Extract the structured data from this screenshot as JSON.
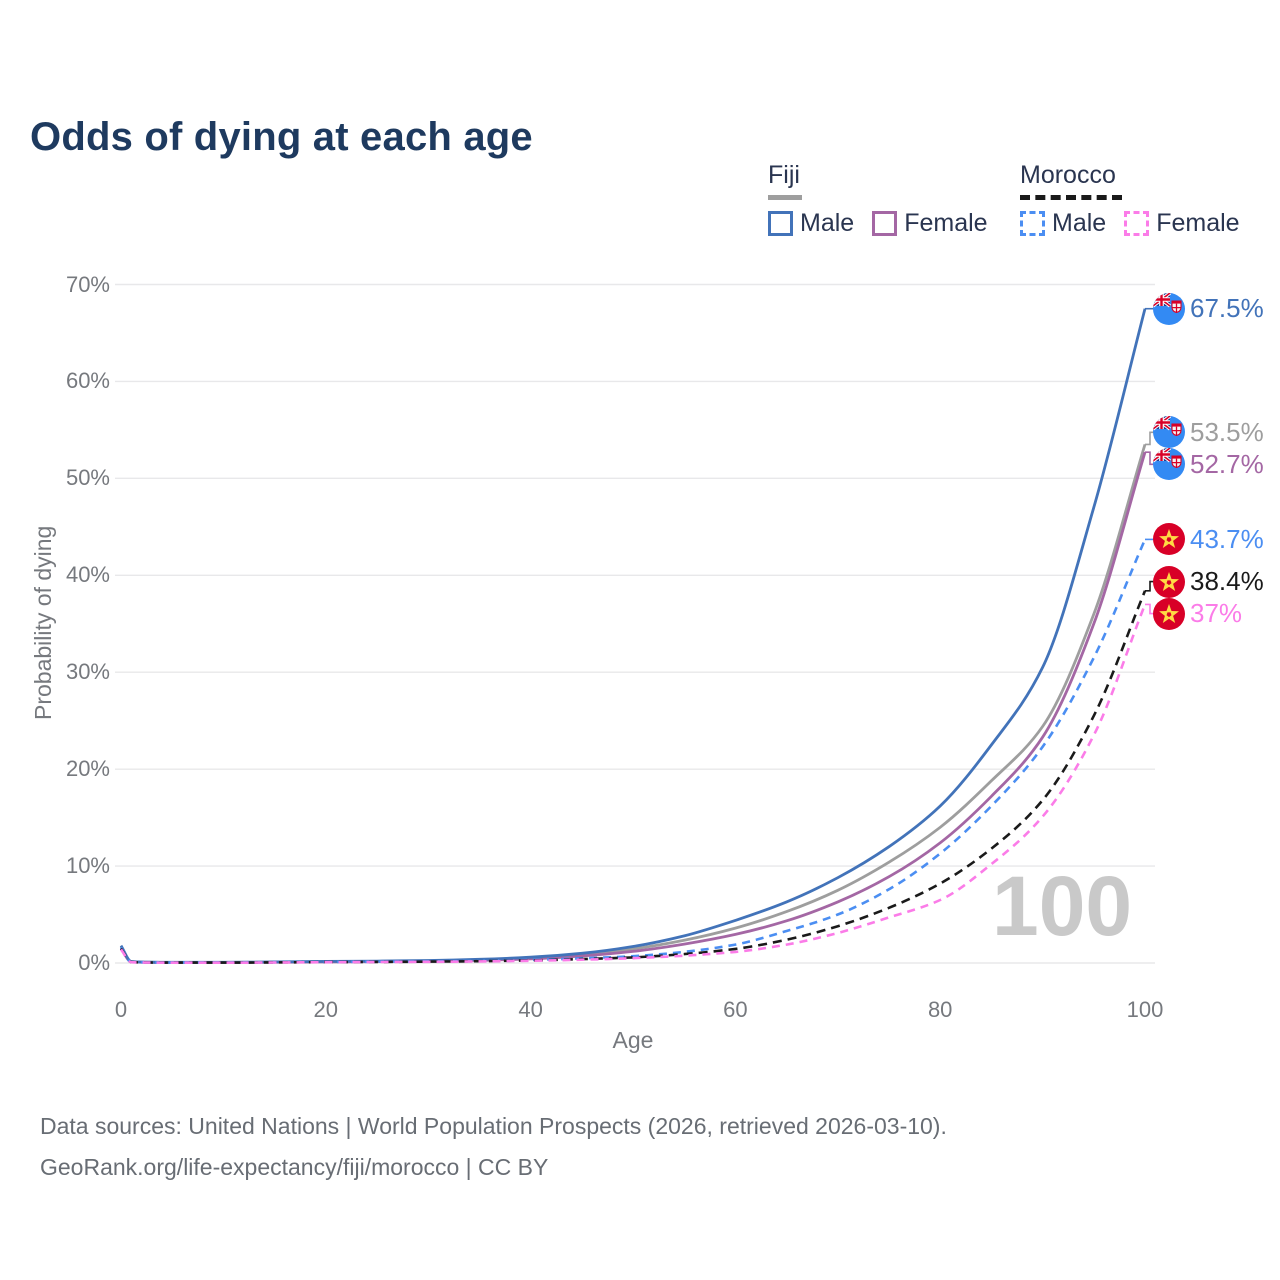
{
  "title": "Odds of dying at each age",
  "watermark": "100",
  "colors": {
    "fiji_male": "#4273b9",
    "fiji_female": "#a467a4",
    "fiji_all": "#9e9e9e",
    "morocco_male": "#4b8ef2",
    "morocco_female": "#fb7ce8",
    "morocco_all": "#1a1a1a",
    "grid": "#e8e8ea",
    "title_text": "#1e3a5f",
    "axis_text": "#76797e",
    "flag_fiji_field": "#338af3",
    "flag_morocco_field": "#d80027",
    "flag_morocco_star": "#ffda44"
  },
  "legend": {
    "groups": [
      {
        "name": "Fiji",
        "underline_color": "#9e9e9e",
        "underline_style": "solid",
        "items": [
          {
            "label": "Male",
            "color": "#4273b9",
            "style": "solid"
          },
          {
            "label": "Female",
            "color": "#a467a4",
            "style": "solid"
          }
        ]
      },
      {
        "name": "Morocco",
        "underline_color": "#1a1a1a",
        "underline_style": "dashed",
        "items": [
          {
            "label": "Male",
            "color": "#4b8ef2",
            "style": "dashed"
          },
          {
            "label": "Female",
            "color": "#fb7ce8",
            "style": "dashed"
          }
        ]
      }
    ]
  },
  "chart_data": {
    "type": "line",
    "title": "Odds of dying at each age",
    "xlabel": "Age",
    "ylabel": "Probability of dying",
    "xlim": [
      0,
      100
    ],
    "ylim": [
      0,
      70
    ],
    "x_ticks": [
      0,
      20,
      40,
      60,
      80,
      100
    ],
    "y_ticks": [
      "0%",
      "10%",
      "20%",
      "30%",
      "40%",
      "50%",
      "60%",
      "70%"
    ],
    "grid": true,
    "legend_position": "top-right",
    "x": [
      0,
      1,
      2,
      3,
      5,
      10,
      15,
      20,
      25,
      30,
      35,
      40,
      45,
      50,
      55,
      60,
      65,
      70,
      75,
      80,
      85,
      90,
      95,
      100
    ],
    "series": [
      {
        "name": "Fiji All",
        "country": "Fiji",
        "flag": "fiji",
        "color": "#9e9e9e",
        "dash": null,
        "end_label": "53.5%",
        "values": [
          1.65,
          0.13,
          0.09,
          0.07,
          0.06,
          0.06,
          0.09,
          0.13,
          0.17,
          0.22,
          0.32,
          0.5,
          0.85,
          1.45,
          2.35,
          3.6,
          5.3,
          7.5,
          10.4,
          14.0,
          18.8,
          24.4,
          36.0,
          53.5
        ]
      },
      {
        "name": "Fiji Female",
        "country": "Fiji",
        "flag": "fiji",
        "color": "#a467a4",
        "dash": null,
        "end_label": "52.7%",
        "values": [
          1.5,
          0.12,
          0.08,
          0.06,
          0.05,
          0.05,
          0.08,
          0.11,
          0.14,
          0.19,
          0.27,
          0.42,
          0.72,
          1.2,
          1.95,
          2.95,
          4.35,
          6.3,
          8.9,
          12.4,
          17.2,
          23.3,
          35.0,
          52.7
        ]
      },
      {
        "name": "Fiji Male",
        "country": "Fiji",
        "flag": "fiji",
        "color": "#4273b9",
        "dash": null,
        "end_label": "67.5%",
        "values": [
          1.8,
          0.15,
          0.1,
          0.08,
          0.07,
          0.07,
          0.11,
          0.16,
          0.2,
          0.26,
          0.38,
          0.6,
          1.0,
          1.7,
          2.8,
          4.4,
          6.3,
          8.8,
          12.0,
          16.2,
          22.5,
          30.5,
          47.0,
          67.5
        ]
      },
      {
        "name": "Morocco Male",
        "country": "Morocco",
        "flag": "morocco",
        "color": "#4b8ef2",
        "dash": "8 6",
        "end_label": "43.7%",
        "values": [
          1.6,
          0.1,
          0.07,
          0.05,
          0.04,
          0.04,
          0.07,
          0.1,
          0.13,
          0.16,
          0.22,
          0.32,
          0.48,
          0.7,
          1.15,
          1.9,
          3.3,
          5.0,
          7.6,
          11.3,
          16.2,
          22.3,
          31.5,
          43.7
        ]
      },
      {
        "name": "Morocco All",
        "country": "Morocco",
        "flag": "morocco",
        "color": "#1a1a1a",
        "dash": "9 6",
        "end_label": "38.4%",
        "values": [
          1.5,
          0.09,
          0.06,
          0.05,
          0.04,
          0.04,
          0.06,
          0.09,
          0.11,
          0.14,
          0.19,
          0.27,
          0.4,
          0.58,
          0.92,
          1.45,
          2.4,
          3.8,
          5.7,
          8.2,
          11.8,
          16.8,
          25.5,
          38.4
        ]
      },
      {
        "name": "Morocco Female",
        "country": "Morocco",
        "flag": "morocco",
        "color": "#fb7ce8",
        "dash": "8 6",
        "end_label": "37%",
        "values": [
          1.4,
          0.08,
          0.05,
          0.04,
          0.03,
          0.03,
          0.05,
          0.08,
          0.1,
          0.12,
          0.16,
          0.23,
          0.34,
          0.5,
          0.75,
          1.15,
          1.9,
          3.1,
          4.7,
          6.5,
          10.2,
          15.1,
          23.5,
          37.0
        ]
      }
    ]
  },
  "footer": {
    "line1": "Data sources: United Nations | World Population Prospects (2026, retrieved 2026-03-10).",
    "line2": "GeoRank.org/life-expectancy/fiji/morocco | CC BY"
  }
}
